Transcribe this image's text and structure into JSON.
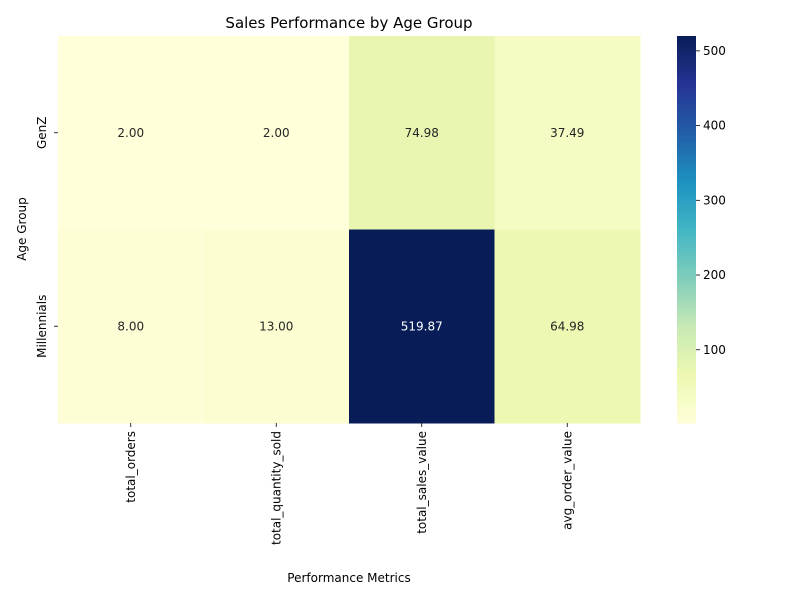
{
  "chart_data": {
    "type": "heatmap",
    "title": "Sales Performance by Age Group",
    "xlabel": "Performance Metrics",
    "ylabel": "Age Group",
    "columns": [
      "total_orders",
      "total_quantity_sold",
      "total_sales_value",
      "avg_order_value"
    ],
    "rows": [
      "GenZ",
      "Millennials"
    ],
    "values": [
      [
        2.0,
        2.0,
        74.98,
        37.49
      ],
      [
        8.0,
        13.0,
        519.87,
        64.98
      ]
    ],
    "value_labels": [
      [
        "2.00",
        "2.00",
        "74.98",
        "37.49"
      ],
      [
        "8.00",
        "13.00",
        "519.87",
        "64.98"
      ]
    ],
    "colormap": "YlGnBu",
    "vmin": 2.0,
    "vmax": 519.87,
    "colorbar_ticks": [
      100,
      200,
      300,
      400,
      500
    ],
    "colorbar_tick_labels": [
      "100",
      "200",
      "300",
      "400",
      "500"
    ],
    "dark_text_color": "#262626",
    "light_text_color": "#ffffff"
  }
}
